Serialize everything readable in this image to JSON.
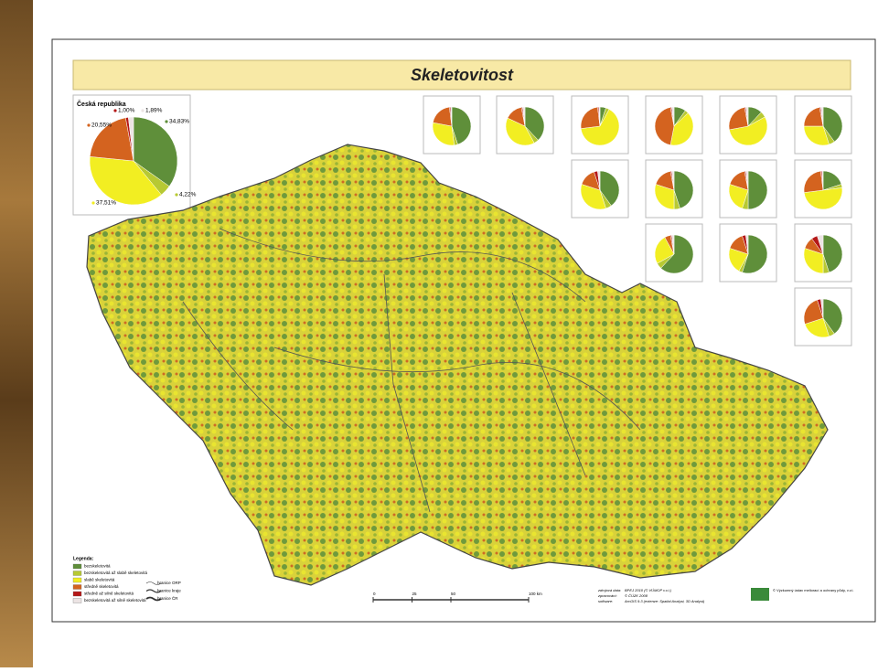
{
  "title": "Skeletovitost",
  "legend": {
    "title": "Legenda:",
    "items": [
      {
        "label": "bezskeletovitá",
        "color": "#5f8f3a"
      },
      {
        "label": "bezskeletovitá až slabě skeletovitá",
        "color": "#b7c933"
      },
      {
        "label": "slabě skeletovitá",
        "color": "#f2ee22"
      },
      {
        "label": "středně skeletovitá",
        "color": "#d4631f"
      },
      {
        "label": "středně až silně skeletovitá",
        "color": "#b51818"
      },
      {
        "label": "bezskeletovitá až silně skeletovitá",
        "color": "#ece4e4"
      }
    ],
    "boundaries": [
      "hranice ORP",
      "hranice kraje",
      "hranice ČR"
    ]
  },
  "scale_bar": {
    "ticks": [
      {
        "value": 0,
        "label": "0"
      },
      {
        "value": 25,
        "label": "25"
      },
      {
        "value": 50,
        "label": "50"
      },
      {
        "value": 100,
        "label": "100 km"
      }
    ]
  },
  "footer": {
    "rows": [
      [
        "zdrojová data:",
        "BPEJ 2010 (© VÚMOP v.v.i.)"
      ],
      [
        "zpracování:",
        "© ČÚZK 2008"
      ],
      [
        "software:",
        "ArcGIS 9.3 (extenze: Spatial Analyst, 3D Analyst)"
      ]
    ],
    "credit": "© Výzkumný ústav meliorací a ochrany půdy, v.v.i."
  },
  "chart_data": [
    {
      "type": "pie",
      "title": "Česká republika",
      "values": [
        34.83,
        4.22,
        37.51,
        20.55,
        1.0,
        1.89
      ],
      "value_labels": [
        "34,83%",
        "4,22%",
        "37,51%",
        "20,55%",
        "1,00%",
        "1,89%"
      ]
    },
    {
      "type": "pie",
      "values": [
        45,
        3,
        30,
        20,
        1,
        1
      ]
    },
    {
      "type": "pie",
      "values": [
        38,
        4,
        40,
        15,
        1,
        2
      ]
    },
    {
      "type": "pie",
      "values": [
        5,
        3,
        65,
        25,
        1,
        1
      ]
    },
    {
      "type": "pie",
      "values": [
        10,
        3,
        40,
        44,
        1,
        2
      ]
    },
    {
      "type": "pie",
      "values": [
        12,
        5,
        55,
        25,
        1,
        2
      ]
    },
    {
      "type": "pie",
      "values": [
        40,
        5,
        30,
        22,
        1,
        2
      ]
    },
    {
      "type": "pie",
      "values": [
        40,
        5,
        35,
        15,
        3,
        2
      ]
    },
    {
      "type": "pie",
      "values": [
        45,
        5,
        30,
        17,
        1,
        2
      ]
    },
    {
      "type": "pie",
      "values": [
        50,
        5,
        25,
        17,
        1,
        2
      ]
    },
    {
      "type": "pie",
      "values": [
        20,
        3,
        50,
        25,
        1,
        1
      ]
    },
    {
      "type": "pie",
      "values": [
        62,
        5,
        25,
        5,
        1,
        2
      ]
    },
    {
      "type": "pie",
      "values": [
        55,
        3,
        22,
        15,
        3,
        2
      ]
    },
    {
      "type": "pie",
      "values": [
        45,
        5,
        30,
        10,
        5,
        5
      ]
    },
    {
      "type": "pie",
      "values": [
        40,
        5,
        25,
        25,
        3,
        2
      ]
    }
  ]
}
